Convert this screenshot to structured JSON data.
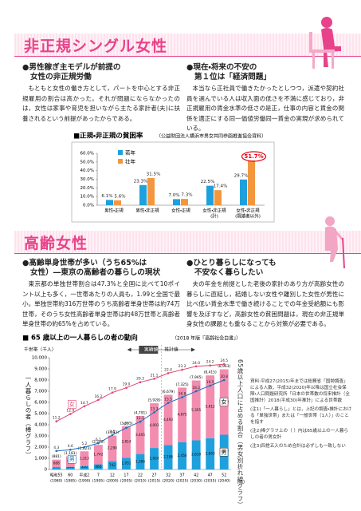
{
  "sections": [
    {
      "title": "非正規シングル女性",
      "columns": [
        {
          "heading": [
            "●男性稼ぎ主モデルが前提の",
            "女性の非正規労働"
          ],
          "body": "もともと女性の働き方として，パートを中心とする非正規雇用の割合は高かった。それが問題にならなかったのは，女性は家事や育児を担いながら主たる家計者(夫)に扶養されるという前提があったからである。"
        },
        {
          "heading": [
            "●現在・将来の不安の",
            "第１位は「経済問題」"
          ],
          "body": "本当なら正社員で働きたかったとしつつ，派遣や契約社員を選んでいる人は収入面の低さを不満に感じており，非正規雇用の賃金水準の低さの是正，仕事の内容と賃金の関係を適正にする同一価値労働同一賃金の実現が求められている。"
        }
      ]
    },
    {
      "title": "高齢女性",
      "columns": [
        {
          "heading": [
            "●高齢単身世帯が多い（うち65%は",
            "女性）―東京の高齢者の暮らしの現状"
          ],
          "body": "東京都の単独世帯割合は47.3%と全国に比べて10ポイント以上も多く，一世帯あたりの人員も，1.99と全国で最小。単独世帯約316万世帯のうち高齢者単身世帯は約74万世帯，そのうち女性高齢者単身世帯は約48万世帯と高齢者単身世帯の約65%を占めている。"
        },
        {
          "heading": [
            "●ひとり暮らしになっても",
            "不安なく暮らしたい"
          ],
          "body": "夫の年金を前提とした老後の家計のあり方が高齢女性の暮らしに直結し，結婚しない女性や離別した女性が男性に比べ低い賃金水準で働き続けることでの年金受給額にも影響を及ぼすなど，高齢女性の貧困問題は，現在の非正規単身女性の課題とも重なることから対策が必要である。"
        }
      ]
    }
  ],
  "chart_data": [
    {
      "type": "bar",
      "title": "■正規・非正規の貧困率",
      "source": "（公益財団法人横浜市男女共同参画推進協会資料）",
      "categories": [
        [
          "男性・正規"
        ],
        [
          "男性・非正規"
        ],
        [
          "女性・正規"
        ],
        [
          "女性・非正規",
          "(計)"
        ],
        [
          "女性・非正規",
          "(既婚者以外)"
        ]
      ],
      "series": [
        {
          "name": "若年",
          "color": "#1ea0dc",
          "values": [
            6.1,
            23.3,
            7.0,
            22.5,
            29.7
          ],
          "value_labels": [
            "6.1%",
            "23.3%",
            "7.0%",
            "22.5%",
            "29.7%"
          ]
        },
        {
          "name": "壮年",
          "color": "#f3973f",
          "values": [
            5.6,
            31.5,
            7.3,
            17.4,
            51.7
          ],
          "value_labels": [
            "5.6%",
            "31.5%",
            "7.3%",
            "17.4%",
            "51.7%"
          ]
        }
      ],
      "highlight": {
        "series": 1,
        "index": 4,
        "color": "#e60012"
      },
      "ylim": [
        0,
        60
      ],
      "yticks": [
        {
          "value": 0,
          "label": "0.0%"
        },
        {
          "value": 10,
          "label": "10.0%"
        },
        {
          "value": 20,
          "label": "20.0%"
        },
        {
          "value": 30,
          "label": "30.0%"
        },
        {
          "value": 40,
          "label": "40.0%"
        },
        {
          "value": 50,
          "label": "50.0%"
        },
        {
          "value": 60,
          "label": "60.0%"
        }
      ],
      "grid": false
    },
    {
      "type": "combo",
      "title": "■ 65 歳以上の一人暮らしの者の動向",
      "source": "（2018 年版『高齢社会白書』）",
      "y_label": "千世帯（千人）",
      "y_title": "一人暮らしの者（棒グラフ）",
      "y2_title": "65歳以上人口に占める割合（男女別折れ線グラフ）",
      "x_unit": "（年）",
      "phase_labels": [
        "実績値",
        "推計値"
      ],
      "categories": [
        "昭和55",
        "60",
        "平成2",
        "7",
        "12",
        "17",
        "22",
        "27",
        "32",
        "37",
        "42",
        "47",
        "52"
      ],
      "category_years": [
        "(1980)",
        "(1985)",
        "(1990)",
        "(1995)",
        "(2000)",
        "(2005)",
        "(2010)",
        "(2015)",
        "(2020)",
        "(2025)",
        "(2030)",
        "(2035)",
        "(2040)"
      ],
      "series": [
        {
          "name": "男",
          "color": "#1ea0dc",
          "values": [
            193,
            233,
            310,
            460,
            742,
            1051,
            1386,
            1924,
            2186,
            2450,
            2610,
            2803,
            3107
          ],
          "value_labels": [
            "193",
            "233",
            "310",
            "460",
            "742",
            "1,051",
            "1,386",
            "1,924",
            "2,186",
            "2,450",
            "2,610",
            "2,803",
            "3,107"
          ]
        },
        {
          "name": "女",
          "color": "#f28db0",
          "values": [
            688,
            948,
            1313,
            1742,
            2290,
            2814,
            3405,
            4003,
            4493,
            4875,
            5355,
            5612,
            5856
          ],
          "value_labels": [
            "688",
            "948",
            "1,313",
            "1,742",
            "2,290",
            "2,814",
            "3,405",
            "4,003",
            "4,493",
            "4,875",
            "5,355",
            "5,612",
            "5,856"
          ]
        },
        {
          "name": "男",
          "type": "line",
          "axis": "y2",
          "color": "#1a6fb8",
          "values": [
            4.3,
            4.6,
            5.2,
            6.1,
            8.0,
            9.7,
            11.1,
            13.3,
            15.5,
            16.8,
            18.2,
            19.5,
            20.8
          ],
          "value_labels": [
            "4.3",
            "4.6",
            "5.2",
            "6.1",
            "8.0",
            "9.7",
            "11.1",
            "13.3",
            "15.5",
            "16.8",
            "18.2",
            "19.5",
            "20.8"
          ]
        },
        {
          "name": "女",
          "type": "line",
          "axis": "y2",
          "color": "#e2456f",
          "values": [
            11.2,
            12.9,
            14.7,
            16.2,
            17.9,
            19.0,
            20.3,
            21.1,
            22.4,
            23.2,
            24.0,
            24.2,
            24.5
          ],
          "value_labels": [
            "11.2",
            "12.9",
            "14.7",
            "16.2",
            "17.9",
            "19.0",
            "20.3",
            "21.1",
            "22.4",
            "23.2",
            "24.0",
            "24.2",
            "24.5"
          ]
        }
      ],
      "totals": {
        "values": [
          881,
          1181,
          1623,
          2202,
          3032,
          3865,
          4791,
          5928,
          6679,
          7325,
          7965,
          8415,
          8963
        ],
        "value_labels": [
          "(881)",
          "(1,181)",
          "(1,623)",
          "(2,202)",
          "(3,032)",
          "(3,865)",
          "(4,791)",
          "(5,928)",
          "(6,679)",
          "(7,325)",
          "(7,965)",
          "(8,415)",
          "(8,963)"
        ]
      },
      "ylim": [
        0,
        10000
      ],
      "yticks": [
        0,
        {
          "value": 1000,
          "label": "1,000"
        },
        {
          "value": 2000,
          "label": "2,000"
        },
        {
          "value": 3000,
          "label": "3,000"
        },
        {
          "value": 4000,
          "label": "4,000"
        },
        {
          "value": 5000,
          "label": "5,000"
        },
        {
          "value": 6000,
          "label": "6,000"
        },
        {
          "value": 7000,
          "label": "7,000"
        },
        {
          "value": 8000,
          "label": "8,000"
        },
        {
          "value": 9000,
          "label": "9,000"
        },
        {
          "value": 10000,
          "label": "10,000"
        }
      ],
      "y2lim": [
        0,
        26
      ],
      "notes": [
        "資料:平成27(2015)年までは総務省「国勢調査」による人数，平成32(2020)年以降は国立社会保障・人口問題研究所「日本の世帯数の将来推計（全国推計）2018(平成30)年推計」による世帯数",
        "(注1)「一人暮らし」とは，上記の調査・推計における「単独世帯」または「一般世帯（1人）」のことを指す",
        "(注2)棒グラフ上の（ ）内は65歳以上の一人暮らしの者の男女計",
        "(注3)四捨五入のため合計は必ずしも一致しない"
      ]
    }
  ]
}
